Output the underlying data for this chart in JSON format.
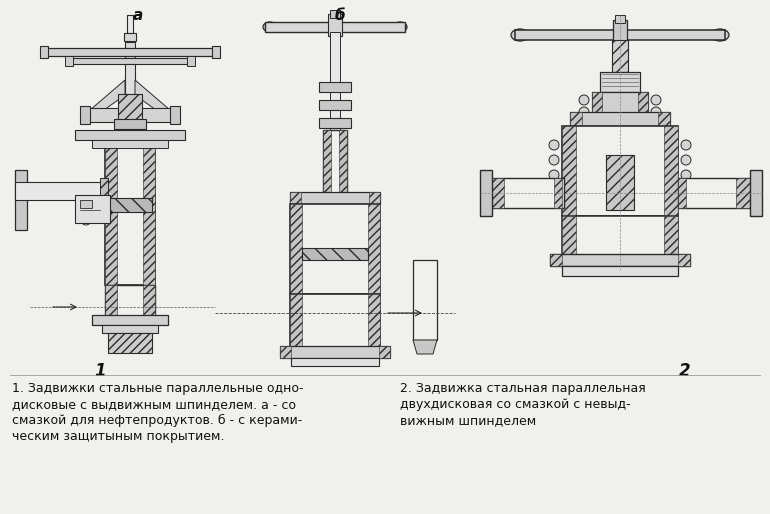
{
  "background_color": "#f0f0ec",
  "label_a": "a",
  "label_b": "б",
  "label_1": "1",
  "label_2": "2",
  "caption_1_line1": "1. Задвижки стальные параллельные одно-",
  "caption_1_line2": "дисковые с выдвижным шпинделем. а - со",
  "caption_1_line3": "смазкой для нефтепродуктов. б - с керами-",
  "caption_1_line4": "ческим защитыным покрытием.",
  "caption_2_line1": "2. Задвижка стальная параллельная",
  "caption_2_line2": "двухдисковая со смазкой с невыд-",
  "caption_2_line3": "вижным шпинделем",
  "line_color": "#2a2a2a",
  "hatch_color": "#888888",
  "text_color": "#111111",
  "fig_width": 7.7,
  "fig_height": 5.14,
  "dpi": 100
}
